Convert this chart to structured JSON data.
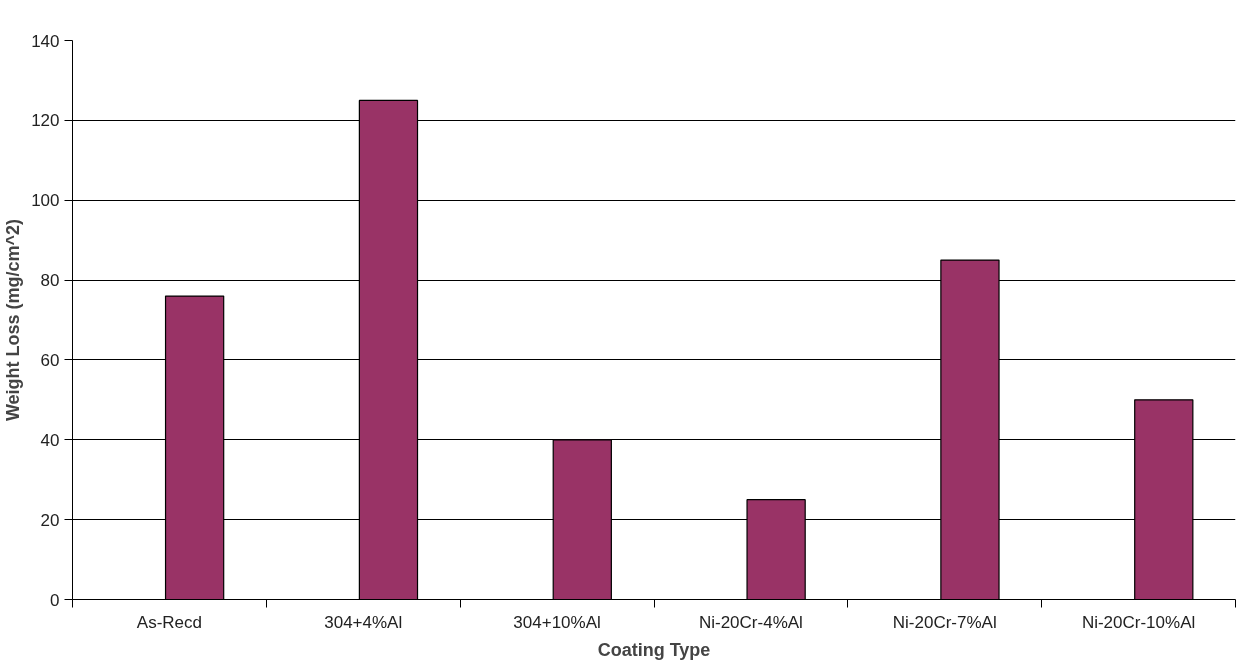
{
  "chart_data": {
    "type": "bar",
    "xlabel": "Coating Type",
    "ylabel": "Weight Loss (mg/cm^2)",
    "categories": [
      "As-Recd",
      "304+4%Al",
      "304+10%Al",
      "Ni-20Cr-4%Al",
      "Ni-20Cr-7%Al",
      "Ni-20Cr-10%Al"
    ],
    "values": [
      76,
      125,
      40,
      25,
      85,
      50
    ],
    "color": "#993366",
    "ylim": [
      0,
      140
    ],
    "yticks": [
      0,
      20,
      40,
      60,
      80,
      100,
      120,
      140
    ],
    "grid": "y"
  }
}
